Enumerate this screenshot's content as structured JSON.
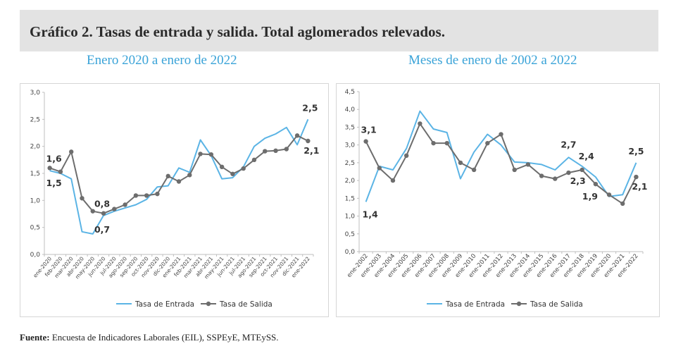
{
  "header": {
    "title": "Gráfico 2. Tasas de entrada y salida. Total aglomerados relevados."
  },
  "colors": {
    "entrada": "#5bb4e5",
    "salida": "#6d6d6d",
    "subtitle": "#3aa3d8",
    "header_band": "#e3e3e3"
  },
  "chart_data": [
    {
      "type": "line",
      "title": "Enero 2020 a enero de 2022",
      "xlabel": "",
      "ylabel": "",
      "ylim": [
        0,
        3.0
      ],
      "yticks": [
        "0,0",
        "0,5",
        "1,0",
        "1,5",
        "2,0",
        "2,5",
        "3,0"
      ],
      "ytick_values": [
        0,
        0.5,
        1.0,
        1.5,
        2.0,
        2.5,
        3.0
      ],
      "grid": false,
      "legend_position": "bottom",
      "categories": [
        "ene-2020",
        "feb-2020",
        "mar-2020",
        "abr-2020",
        "may-2020",
        "jun-2020",
        "jul-2020",
        "ago-2020",
        "sep-2020",
        "oct-2020",
        "nov-2020",
        "dic-2020",
        "ene-2021",
        "feb-2021",
        "mar-2021",
        "abr-2021",
        "may-2021",
        "jun-2021",
        "jul-2021",
        "ago-2021",
        "sep-2021",
        "oct-2021",
        "nov-2021",
        "dic-2021",
        "ene-2022"
      ],
      "series": [
        {
          "name": "Tasa de Entrada",
          "values": [
            1.55,
            1.5,
            1.4,
            0.42,
            0.38,
            0.72,
            0.8,
            0.86,
            0.92,
            1.02,
            1.25,
            1.27,
            1.6,
            1.52,
            2.12,
            1.83,
            1.4,
            1.42,
            1.62,
            2.0,
            2.15,
            2.23,
            2.35,
            2.03,
            2.5
          ]
        },
        {
          "name": "Tasa de Salida",
          "values": [
            1.6,
            1.53,
            1.9,
            1.04,
            0.8,
            0.76,
            0.84,
            0.92,
            1.09,
            1.09,
            1.12,
            1.45,
            1.35,
            1.47,
            1.86,
            1.85,
            1.62,
            1.49,
            1.59,
            1.75,
            1.91,
            1.92,
            1.95,
            2.2,
            2.1
          ]
        }
      ],
      "annotations": [
        {
          "text": "1,6",
          "index": 0,
          "series": "Tasa de Salida"
        },
        {
          "text": "1,5",
          "index": 0,
          "series": "Tasa de Entrada"
        },
        {
          "text": "0,8",
          "index": 5,
          "series": "Tasa de Salida"
        },
        {
          "text": "0,7",
          "index": 5,
          "series": "Tasa de Entrada"
        },
        {
          "text": "2,5",
          "index": 24,
          "series": "Tasa de Entrada"
        },
        {
          "text": "2,1",
          "index": 24,
          "series": "Tasa de Salida"
        }
      ]
    },
    {
      "type": "line",
      "title": "Meses de enero de 2002 a 2022",
      "xlabel": "",
      "ylabel": "",
      "ylim": [
        0,
        4.5
      ],
      "yticks": [
        "0,0",
        "0,5",
        "1,0",
        "1,5",
        "2,0",
        "2,5",
        "3,0",
        "3,5",
        "4,0",
        "4,5"
      ],
      "ytick_values": [
        0,
        0.5,
        1.0,
        1.5,
        2.0,
        2.5,
        3.0,
        3.5,
        4.0,
        4.5
      ],
      "grid": false,
      "legend_position": "bottom",
      "categories": [
        "ene-2002",
        "ene-2003",
        "ene-2004",
        "ene-2005",
        "ene-2006",
        "ene-2007",
        "ene-2008",
        "ene-2009",
        "ene-2010",
        "ene-2011",
        "ene-2012",
        "ene-2013",
        "ene-2014",
        "ene-2015",
        "ene-2016",
        "ene-2017",
        "ene-2018",
        "ene-2019",
        "ene-2020",
        "ene-2021",
        "ene-2022"
      ],
      "series": [
        {
          "name": "Tasa de Entrada",
          "values": [
            1.4,
            2.4,
            2.3,
            2.9,
            3.95,
            3.45,
            3.35,
            2.05,
            2.8,
            3.3,
            3.0,
            2.52,
            2.5,
            2.45,
            2.3,
            2.65,
            2.4,
            2.1,
            1.55,
            1.6,
            2.5
          ]
        },
        {
          "name": "Tasa de Salida",
          "values": [
            3.1,
            2.35,
            2.0,
            2.7,
            3.6,
            3.05,
            3.05,
            2.5,
            2.3,
            3.05,
            3.3,
            2.3,
            2.45,
            2.13,
            2.05,
            2.22,
            2.3,
            1.9,
            1.6,
            1.35,
            2.1
          ]
        }
      ],
      "annotations": [
        {
          "text": "3,1",
          "index": 0,
          "series": "Tasa de Salida"
        },
        {
          "text": "1,4",
          "index": 0,
          "series": "Tasa de Entrada"
        },
        {
          "text": "2,7",
          "index": 15,
          "series": "Tasa de Entrada"
        },
        {
          "text": "2,4",
          "index": 16,
          "series": "Tasa de Entrada"
        },
        {
          "text": "2,3",
          "index": 16,
          "series": "Tasa de Salida"
        },
        {
          "text": "1,9",
          "index": 17,
          "series": "Tasa de Salida"
        },
        {
          "text": "2,5",
          "index": 20,
          "series": "Tasa de Entrada"
        },
        {
          "text": "2,1",
          "index": 20,
          "series": "Tasa de Salida"
        }
      ]
    }
  ],
  "footer": {
    "source_label": "Fuente:",
    "source_text": "Encuesta de Indicadores Laborales (EIL), SSPEyE, MTEySS."
  }
}
